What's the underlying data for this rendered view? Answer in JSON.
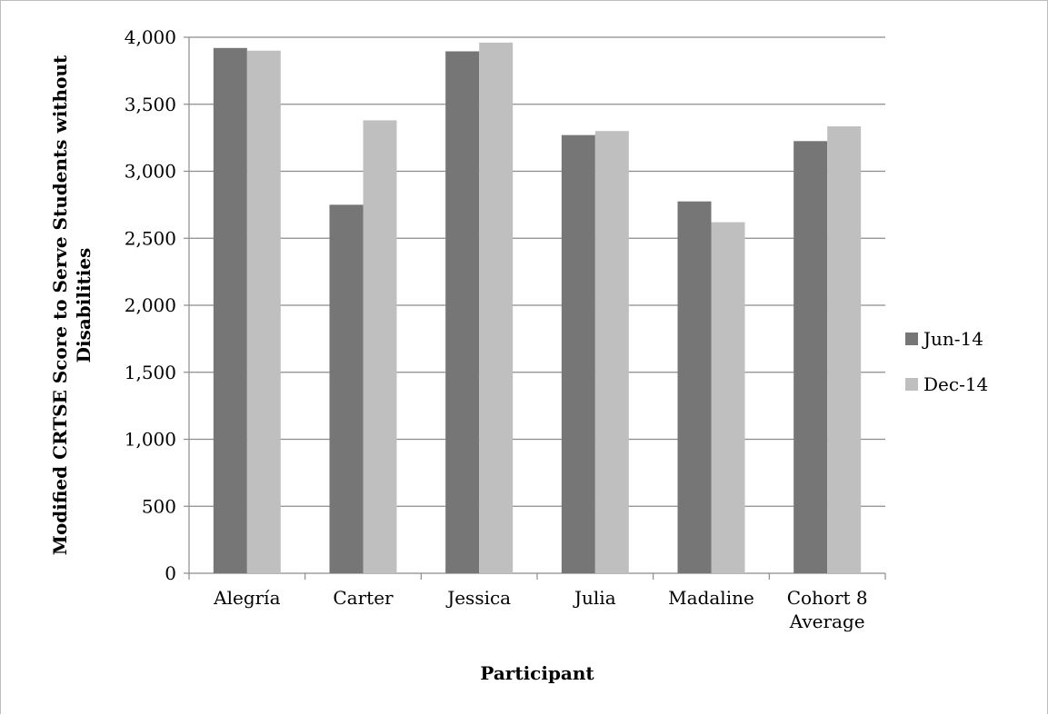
{
  "chart_data": {
    "type": "bar",
    "title": "",
    "xlabel": "Participant",
    "ylabel_lines": [
      "Modified CRTSE Score to Serve Students without",
      "Disabilities"
    ],
    "categories": [
      [
        "Alegría"
      ],
      [
        "Carter"
      ],
      [
        "Jessica"
      ],
      [
        "Julia"
      ],
      [
        "Madaline"
      ],
      [
        "Cohort 8",
        "Average"
      ]
    ],
    "series": [
      {
        "name": "Jun-14",
        "color": "#767676",
        "values": [
          3920,
          2750,
          3895,
          3270,
          2775,
          3225
        ]
      },
      {
        "name": "Dec-14",
        "color": "#bfbfbf",
        "values": [
          3900,
          3380,
          3960,
          3300,
          2620,
          3335
        ]
      }
    ],
    "ylim": [
      0,
      4000
    ],
    "yticks": [
      "0",
      "500",
      "1,000",
      "1,500",
      "2,000",
      "2,500",
      "3,000",
      "3,500",
      "4,000"
    ],
    "grid": true,
    "legend_position": "right"
  }
}
